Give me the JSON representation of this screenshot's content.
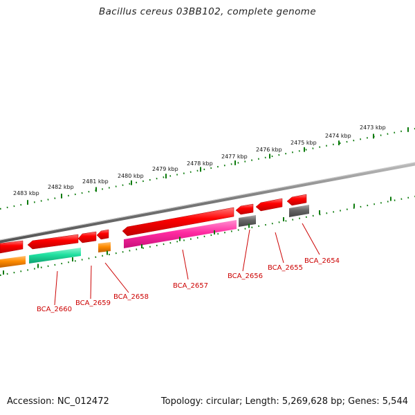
{
  "header": {
    "title": "Bacillus cereus 03BB102, complete genome"
  },
  "footer": {
    "accession": "Accession: NC_012472",
    "stats": "Topology: circular; Length: 5,269,628 bp; Genes: 5,544"
  },
  "colors": {
    "gene_forward": "#ff0000",
    "gene_label": "#cc0000",
    "backbone": "#808080",
    "tick": "#007a00",
    "cds_pink": "#ff2aa0",
    "cds_green": "#20e0a0",
    "cds_orange": "#ff8c00",
    "cds_grey": "#666666"
  },
  "scale_labels": [
    "2483 kbp",
    "2482 kbp",
    "2481 kbp",
    "2480 kbp",
    "2479 kbp",
    "2478 kbp",
    "2477 kbp",
    "2476 kbp",
    "2475 kbp",
    "2474 kbp",
    "2473 kbp"
  ],
  "genes": [
    "BCA_2660",
    "BCA_2659",
    "BCA_2658",
    "BCA_2657",
    "BCA_2656",
    "BCA_2655",
    "BCA_2654"
  ]
}
